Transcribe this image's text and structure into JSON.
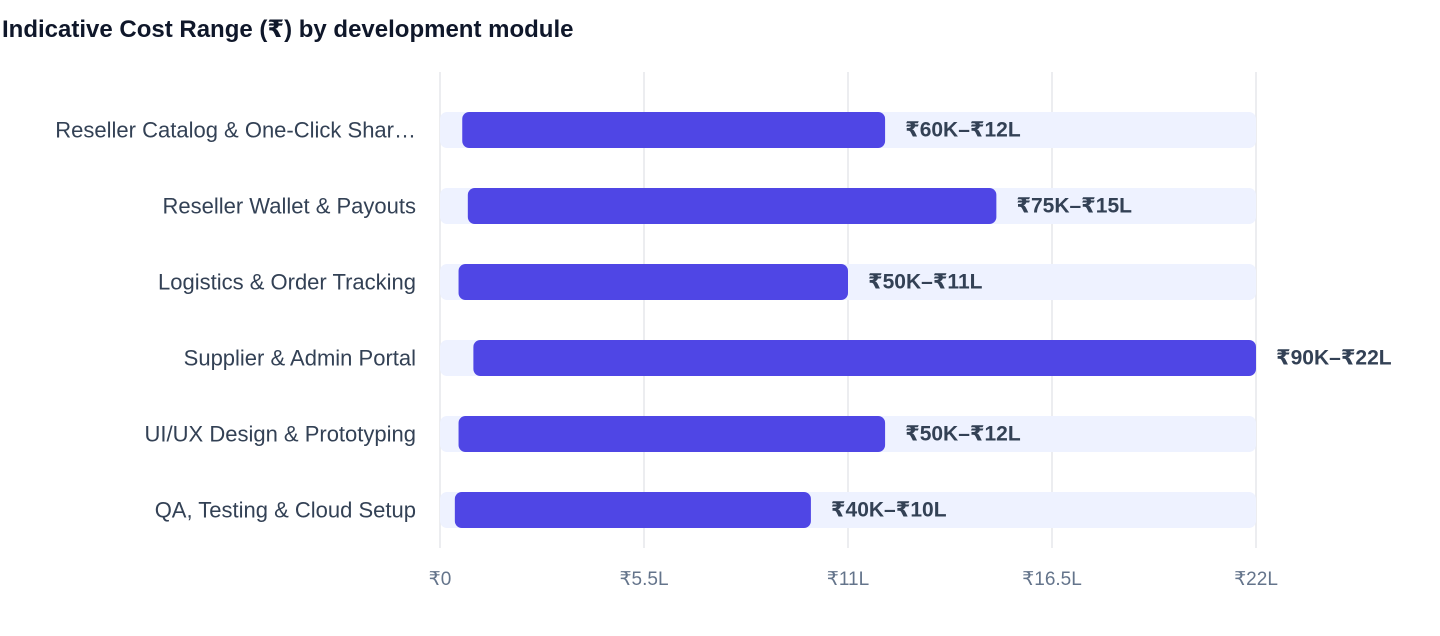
{
  "chart_data": {
    "type": "bar",
    "orientation": "horizontal",
    "title": "Indicative Cost Range (₹) by development module",
    "xlabel": "",
    "ylabel": "",
    "grid": true,
    "xlim": [
      0,
      22
    ],
    "unit": "₹ Lakh",
    "ticks": [
      {
        "value": 0,
        "label": "₹0"
      },
      {
        "value": 5.5,
        "label": "₹5.5L"
      },
      {
        "value": 11,
        "label": "₹11L"
      },
      {
        "value": 16.5,
        "label": "₹16.5L"
      },
      {
        "value": 22,
        "label": "₹22L"
      }
    ],
    "categories": [
      "Reseller Catalog & One-Click Shar…",
      "Reseller Wallet & Payouts",
      "Logistics & Order Tracking",
      "Supplier & Admin Portal",
      "UI/UX Design & Prototyping",
      "QA, Testing & Cloud Setup"
    ],
    "ranges": [
      {
        "min": 0.6,
        "max": 12,
        "label": "₹60K–₹12L"
      },
      {
        "min": 0.75,
        "max": 15,
        "label": "₹75K–₹15L"
      },
      {
        "min": 0.5,
        "max": 11,
        "label": "₹50K–₹11L"
      },
      {
        "min": 0.9,
        "max": 22,
        "label": "₹90K–₹22L"
      },
      {
        "min": 0.5,
        "max": 12,
        "label": "₹50K–₹12L"
      },
      {
        "min": 0.4,
        "max": 10,
        "label": "₹40K–₹10L"
      }
    ],
    "colors": {
      "bar": "#4f46e5",
      "track": "#eef2ff",
      "grid": "#e5e7eb"
    }
  }
}
